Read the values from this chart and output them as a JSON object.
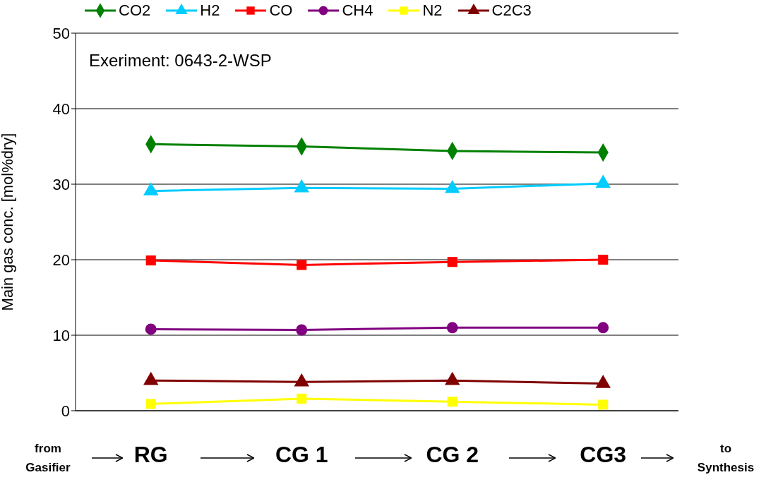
{
  "chart_data": {
    "type": "line",
    "ylabel": "Main gas conc. [mol%dry]",
    "categories": [
      "RG",
      "CG 1",
      "CG 2",
      "CG3"
    ],
    "series": [
      {
        "name": "CO2",
        "color": "#008000",
        "marker": "diamond",
        "values": [
          35.3,
          35.0,
          34.4,
          34.2
        ]
      },
      {
        "name": "H2",
        "color": "#00ccff",
        "marker": "triangle",
        "values": [
          29.1,
          29.5,
          29.4,
          30.1
        ]
      },
      {
        "name": "CO",
        "color": "#ff0000",
        "marker": "square",
        "values": [
          19.9,
          19.3,
          19.7,
          20.0
        ]
      },
      {
        "name": "CH4",
        "color": "#800080",
        "marker": "circle",
        "values": [
          10.8,
          10.7,
          11.0,
          11.0
        ]
      },
      {
        "name": "N2",
        "color": "#ffff00",
        "marker": "square",
        "values": [
          0.9,
          1.6,
          1.2,
          0.8
        ]
      },
      {
        "name": "C2C3",
        "color": "#800000",
        "marker": "triangle",
        "values": [
          4.0,
          3.8,
          4.0,
          3.6
        ]
      }
    ],
    "ylim": [
      0,
      50
    ],
    "yticks": [
      0,
      10,
      20,
      30,
      40,
      50
    ],
    "grid": "y",
    "legend": "top",
    "line_style": "solid",
    "annotations": [
      "Exeriment: 0643-2-WSP",
      "from Gasifier",
      "to Synthesis"
    ]
  }
}
